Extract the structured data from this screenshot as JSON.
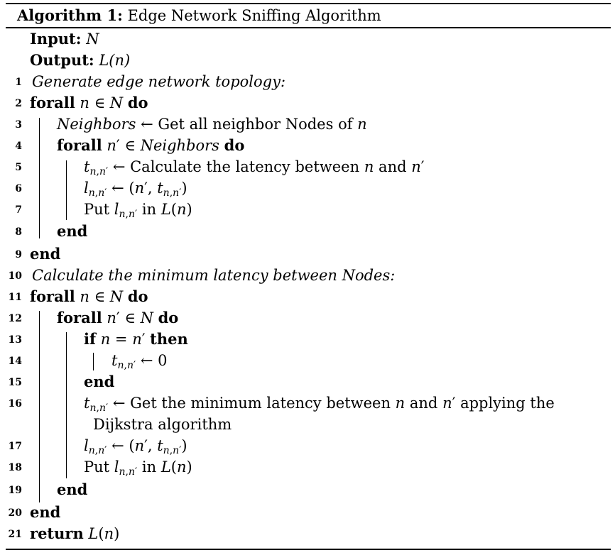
{
  "algorithm": {
    "caption_label": "Algorithm 1:",
    "caption_title": "Edge Network Sniffing Algorithm"
  },
  "io": {
    "input_label": "Input:",
    "input_value": "N",
    "output_label": "Output:",
    "output_value": "L(n)"
  },
  "keywords": {
    "forall": "forall",
    "do": "do",
    "end": "end",
    "if": "if",
    "then": "then",
    "return": "return"
  },
  "lines": {
    "l1": "Generate edge network topology:",
    "l3_var": "Neighbors",
    "l3_text": "Get all neighbor Nodes of",
    "l5_text": "Calculate the latency between",
    "l5_and": "and",
    "l7_put": "Put",
    "l7_in": "in",
    "l10": "Calculate the minimum latency between Nodes:",
    "l14_zero": "0",
    "l16_text": "Get the minimum latency between",
    "l16_and": "and",
    "l16_tail": "applying the",
    "l16_cont": "Dijkstra algorithm",
    "l18_put": "Put",
    "l18_in": "in"
  },
  "line_numbers": [
    "1",
    "2",
    "3",
    "4",
    "5",
    "6",
    "7",
    "8",
    "9",
    "10",
    "11",
    "12",
    "13",
    "14",
    "15",
    "16",
    "17",
    "18",
    "19",
    "20",
    "21"
  ]
}
